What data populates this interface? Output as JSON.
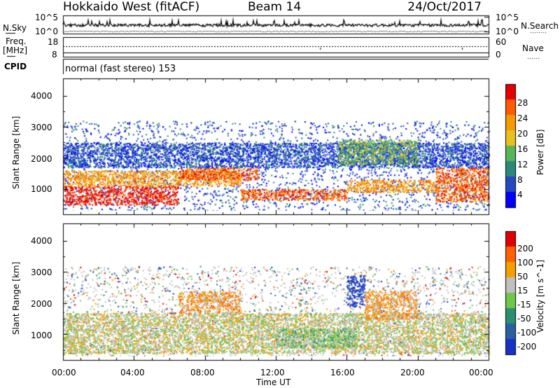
{
  "header": {
    "title": "Hokkaido West (fitACF)",
    "beam": "Beam 14",
    "date": "24/Oct/2017"
  },
  "noise_panel": {
    "left_label": "N.Sky",
    "right_label": "N.Search",
    "left_ticks": [
      "10^5",
      "10^0"
    ],
    "right_ticks": [
      "10^5",
      "10^0"
    ]
  },
  "freq_panel": {
    "left_label_1": "Freq.",
    "left_label_2": "[MHz]",
    "right_label": "Nave",
    "left_ticks": [
      "18",
      "8"
    ],
    "right_ticks": [
      "60",
      "0"
    ]
  },
  "cpid": {
    "label": "CPID",
    "mode_text": "normal (fast stereo) 153"
  },
  "chart_data": [
    {
      "type": "heatmap",
      "name": "power",
      "ylabel": "Slant Range [km]",
      "ylim": [
        180,
        4560
      ],
      "yticks": [
        "1000",
        "2000",
        "3000",
        "4000"
      ],
      "colorbar_label": "Power [dB]",
      "colorbar_ticks": [
        "4",
        "8",
        "12",
        "16",
        "20",
        "24",
        "28"
      ],
      "colors": [
        "#0000ff",
        "#2548c0",
        "#2a8a78",
        "#59b559",
        "#e8c020",
        "#f59a00",
        "#ff5a00",
        "#e50000"
      ],
      "regions": [
        {
          "t0": 0.0,
          "t1": 6.5,
          "r0": 500,
          "r1": 1100,
          "level": 7
        },
        {
          "t0": 0.0,
          "t1": 10.0,
          "r0": 1100,
          "r1": 1600,
          "level": 5
        },
        {
          "t0": 6.5,
          "t1": 11.0,
          "r0": 1300,
          "r1": 1700,
          "level": 6
        },
        {
          "t0": 10.0,
          "t1": 16.0,
          "r0": 650,
          "r1": 1000,
          "level": 6
        },
        {
          "t0": 16.0,
          "t1": 21.0,
          "r0": 900,
          "r1": 1300,
          "level": 5
        },
        {
          "t0": 21.0,
          "t1": 24.0,
          "r0": 600,
          "r1": 1700,
          "level": 6
        },
        {
          "t0": 0.0,
          "t1": 24.0,
          "r0": 1700,
          "r1": 2500,
          "level": 1
        },
        {
          "t0": 15.5,
          "t1": 20.0,
          "r0": 1800,
          "r1": 2600,
          "level": 3
        }
      ]
    },
    {
      "type": "heatmap",
      "name": "velocity",
      "ylabel": "Slant Range [km]",
      "ylim": [
        180,
        4560
      ],
      "yticks": [
        "1000",
        "2000",
        "3000",
        "4000"
      ],
      "colorbar_label": "Velocity [m s^-1]",
      "colorbar_ticks": [
        "200",
        "100",
        "50",
        "15",
        "-15",
        "-50",
        "-100",
        "-200"
      ],
      "colors": [
        "#1830c8",
        "#2a60a0",
        "#2a9070",
        "#6ec84a",
        "#c0c0c0",
        "#f5a000",
        "#ff6000",
        "#e00000"
      ],
      "regions": [
        {
          "t0": 0.0,
          "t1": 24.0,
          "r0": 400,
          "r1": 1700,
          "level": 4
        },
        {
          "t0": 6.5,
          "t1": 10.0,
          "r0": 1700,
          "r1": 2400,
          "level": 5
        },
        {
          "t0": 12.0,
          "t1": 16.5,
          "r0": 600,
          "r1": 1200,
          "level": 3
        },
        {
          "t0": 16.0,
          "t1": 17.0,
          "r0": 1900,
          "r1": 2900,
          "level": 0
        },
        {
          "t0": 17.0,
          "t1": 20.0,
          "r0": 1500,
          "r1": 2400,
          "level": 5
        }
      ]
    }
  ],
  "xaxis": {
    "ticks": [
      "00:00",
      "04:00",
      "08:00",
      "12:00",
      "16:00",
      "20:00",
      "00:00"
    ],
    "label": "Time UT"
  }
}
